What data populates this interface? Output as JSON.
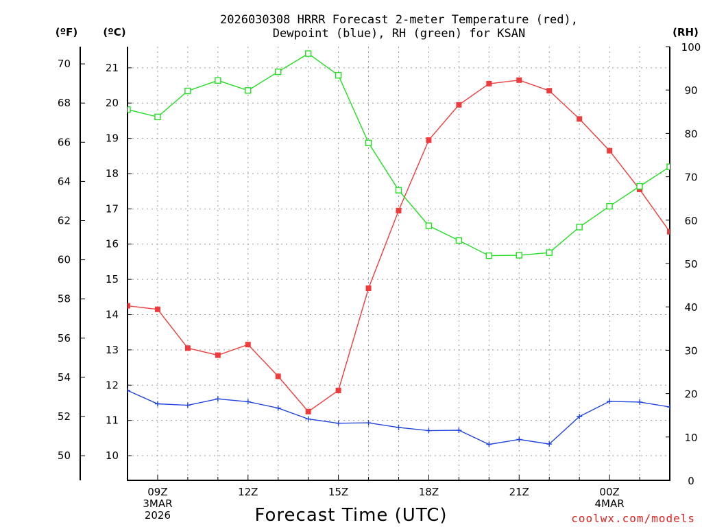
{
  "chart_data": {
    "type": "line",
    "title_line1": "2026030308 HRRR Forecast 2-meter Temperature (red),",
    "title_line2": "Dewpoint (blue), RH (green) for KSAN",
    "xlabel": "Forecast Time (UTC)",
    "credit": "coolwx.com/models",
    "units": {
      "f": "(ºF)",
      "c": "(ºC)",
      "rh": "(RH)"
    },
    "x": [
      8,
      9,
      10,
      11,
      12,
      13,
      14,
      15,
      16,
      17,
      18,
      19,
      20,
      21,
      22,
      23,
      24,
      25,
      26
    ],
    "xlim": [
      8,
      26
    ],
    "x_ticks": [
      {
        "x": 9,
        "lines": [
          "09Z",
          "3MAR",
          "2026"
        ]
      },
      {
        "x": 12,
        "lines": [
          "12Z"
        ]
      },
      {
        "x": 15,
        "lines": [
          "15Z"
        ]
      },
      {
        "x": 18,
        "lines": [
          "18Z"
        ]
      },
      {
        "x": 21,
        "lines": [
          "21Z"
        ]
      },
      {
        "x": 24,
        "lines": [
          "00Z",
          "4MAR"
        ]
      }
    ],
    "celsius_axis": {
      "ylim": [
        9.3,
        21.6
      ],
      "ticks": [
        10,
        11,
        12,
        13,
        14,
        15,
        16,
        17,
        18,
        19,
        20,
        21
      ]
    },
    "fahrenheit_axis": {
      "ylim": [
        48.74,
        70.88
      ],
      "ticks": [
        50,
        52,
        54,
        56,
        58,
        60,
        62,
        64,
        66,
        68,
        70
      ]
    },
    "rh_axis": {
      "ylim": [
        0,
        100
      ],
      "ticks": [
        0,
        10,
        20,
        30,
        40,
        50,
        60,
        70,
        80,
        90,
        100
      ]
    },
    "series": [
      {
        "name": "Temperature",
        "color": "#ee3b3b",
        "axis": "celsius",
        "marker": "filled-square",
        "values": [
          14.25,
          14.15,
          13.05,
          12.85,
          13.15,
          12.25,
          11.25,
          11.85,
          14.75,
          16.95,
          18.95,
          19.95,
          20.55,
          20.65,
          20.35,
          19.55,
          18.65,
          17.55,
          16.35
        ]
      },
      {
        "name": "Dewpoint",
        "color": "#2244dd",
        "axis": "celsius",
        "marker": "plus",
        "values": [
          11.85,
          11.47,
          11.43,
          11.61,
          11.53,
          11.35,
          11.04,
          10.92,
          10.93,
          10.8,
          10.71,
          10.72,
          10.32,
          10.46,
          10.33,
          11.11,
          11.54,
          11.52,
          11.38
        ]
      },
      {
        "name": "RH",
        "color": "#22dd22",
        "axis": "rh",
        "marker": "open-square",
        "values": [
          85.5,
          83.8,
          89.8,
          92.2,
          89.9,
          94.2,
          98.4,
          93.4,
          77.8,
          66.9,
          58.7,
          55.3,
          51.8,
          51.9,
          52.5,
          58.4,
          63.2,
          67.8,
          72.3
        ]
      }
    ]
  }
}
